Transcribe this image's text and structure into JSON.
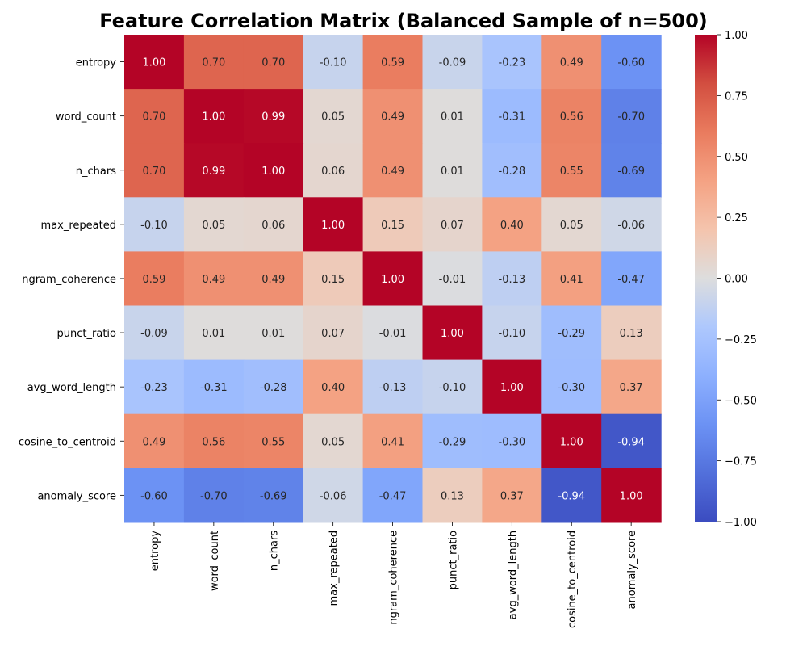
{
  "chart_data": {
    "type": "heatmap",
    "title": "Feature Correlation Matrix (Balanced Sample of n=500)",
    "row_labels": [
      "entropy",
      "word_count",
      "n_chars",
      "max_repeated",
      "ngram_coherence",
      "punct_ratio",
      "avg_word_length",
      "cosine_to_centroid",
      "anomaly_score"
    ],
    "col_labels": [
      "entropy",
      "word_count",
      "n_chars",
      "max_repeated",
      "ngram_coherence",
      "punct_ratio",
      "avg_word_length",
      "cosine_to_centroid",
      "anomaly_score"
    ],
    "values": [
      [
        1.0,
        0.7,
        0.7,
        -0.1,
        0.59,
        -0.09,
        -0.23,
        0.49,
        -0.6
      ],
      [
        0.7,
        1.0,
        0.99,
        0.05,
        0.49,
        0.01,
        -0.31,
        0.56,
        -0.7
      ],
      [
        0.7,
        0.99,
        1.0,
        0.06,
        0.49,
        0.01,
        -0.28,
        0.55,
        -0.69
      ],
      [
        -0.1,
        0.05,
        0.06,
        1.0,
        0.15,
        0.07,
        0.4,
        0.05,
        -0.06
      ],
      [
        0.59,
        0.49,
        0.49,
        0.15,
        1.0,
        -0.01,
        -0.13,
        0.41,
        -0.47
      ],
      [
        -0.09,
        0.01,
        0.01,
        0.07,
        -0.01,
        1.0,
        -0.1,
        -0.29,
        0.13
      ],
      [
        -0.23,
        -0.31,
        -0.28,
        0.4,
        -0.13,
        -0.1,
        1.0,
        -0.3,
        0.37
      ],
      [
        0.49,
        0.56,
        0.55,
        0.05,
        0.41,
        -0.29,
        -0.3,
        1.0,
        -0.94
      ],
      [
        -0.6,
        -0.7,
        -0.69,
        -0.06,
        -0.47,
        0.13,
        0.37,
        -0.94,
        1.0
      ]
    ],
    "value_format": "2 decimals",
    "colormap": "coolwarm",
    "vmin": -1.0,
    "vmax": 1.0,
    "colorbar_ticks": [
      "1.00",
      "0.75",
      "0.50",
      "0.25",
      "0.00",
      "−0.25",
      "−0.50",
      "−0.75",
      "−1.00"
    ],
    "colorbar_tick_values": [
      1.0,
      0.75,
      0.5,
      0.25,
      0.0,
      -0.25,
      -0.5,
      -0.75,
      -1.0
    ],
    "grid": false
  }
}
